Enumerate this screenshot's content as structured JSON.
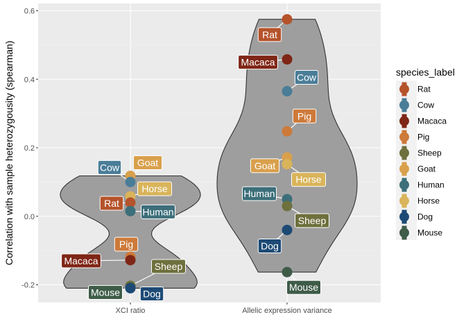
{
  "chart_data": {
    "type": "violin",
    "title": "",
    "xlabel": "",
    "ylabel": "Correlation with sample heterozygousity (spearman)",
    "ylim": [
      -0.245,
      0.61
    ],
    "yticks": [
      -0.2,
      0.0,
      0.2,
      0.4,
      0.6
    ],
    "ytick_labels": [
      "-0.2",
      "0.0",
      "0.2",
      "0.4",
      "0.6"
    ],
    "categories": [
      "XCI ratio",
      "Allelic expression variance"
    ],
    "legend": {
      "title": "species_label",
      "position": "right"
    },
    "grid": true,
    "species": [
      {
        "name": "Rat",
        "color": "#B5532B"
      },
      {
        "name": "Cow",
        "color": "#4A7D98"
      },
      {
        "name": "Macaca",
        "color": "#7F2616"
      },
      {
        "name": "Pig",
        "color": "#CD7A3A"
      },
      {
        "name": "Sheep",
        "color": "#6E703D"
      },
      {
        "name": "Goat",
        "color": "#D9A04C"
      },
      {
        "name": "Human",
        "color": "#3C6F7A"
      },
      {
        "name": "Horse",
        "color": "#D9B45A"
      },
      {
        "name": "Dog",
        "color": "#1D4A75"
      },
      {
        "name": "Mouse",
        "color": "#3E5C48"
      }
    ],
    "series": [
      {
        "category": "XCI ratio",
        "points": [
          {
            "species": "Goat",
            "value": 0.118
          },
          {
            "species": "Cow",
            "value": 0.1
          },
          {
            "species": "Horse",
            "value": 0.058
          },
          {
            "species": "Rat",
            "value": 0.04
          },
          {
            "species": "Human",
            "value": 0.015
          },
          {
            "species": "Pig",
            "value": -0.118
          },
          {
            "species": "Macaca",
            "value": -0.128
          },
          {
            "species": "Sheep",
            "value": -0.203
          },
          {
            "species": "Mouse",
            "value": -0.208
          },
          {
            "species": "Dog",
            "value": -0.21
          }
        ]
      },
      {
        "category": "Allelic expression variance",
        "points": [
          {
            "species": "Rat",
            "value": 0.575
          },
          {
            "species": "Macaca",
            "value": 0.458
          },
          {
            "species": "Cow",
            "value": 0.365
          },
          {
            "species": "Pig",
            "value": 0.248
          },
          {
            "species": "Goat",
            "value": 0.172
          },
          {
            "species": "Horse",
            "value": 0.152
          },
          {
            "species": "Human",
            "value": 0.05
          },
          {
            "species": "Sheep",
            "value": 0.03
          },
          {
            "species": "Dog",
            "value": -0.04
          },
          {
            "species": "Mouse",
            "value": -0.163
          }
        ]
      }
    ]
  }
}
